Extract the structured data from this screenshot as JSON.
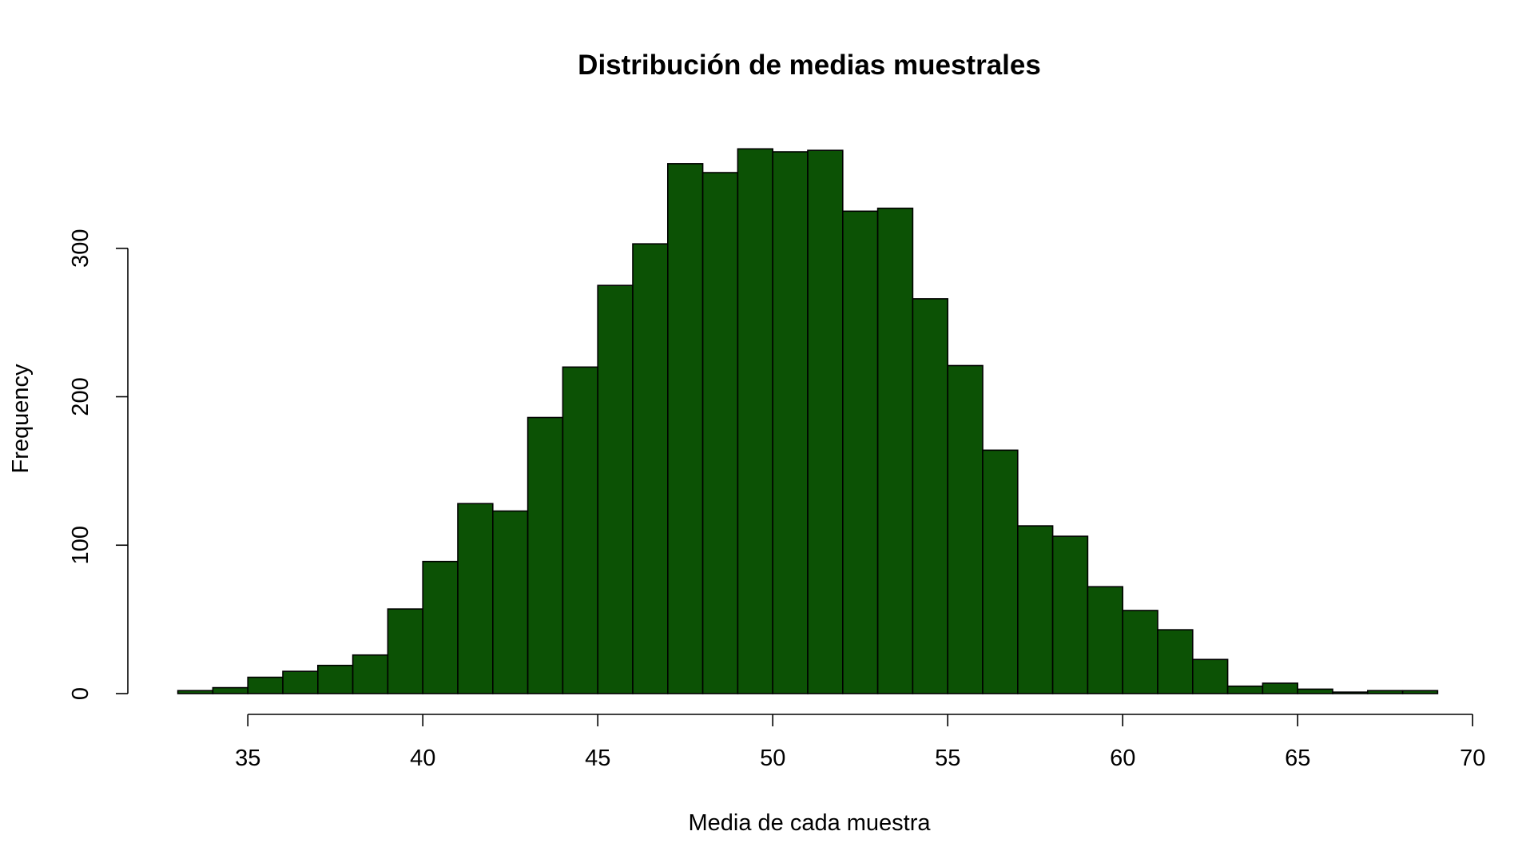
{
  "chart_data": {
    "type": "bar",
    "subtype": "histogram",
    "title": "Distribución de medias muestrales",
    "xlabel": "Media de cada muestra",
    "ylabel": "Frequency",
    "bar_color": "#0c5205",
    "border_color": "#000000",
    "xlim": [
      33,
      70
    ],
    "ylim": [
      0,
      370
    ],
    "x_ticks": [
      35,
      40,
      45,
      50,
      55,
      60,
      65,
      70
    ],
    "y_ticks": [
      0,
      100,
      200,
      300
    ],
    "grid": false,
    "legend": "none",
    "bins": [
      {
        "x0": 33,
        "x1": 34,
        "value": 2
      },
      {
        "x0": 34,
        "x1": 35,
        "value": 4
      },
      {
        "x0": 35,
        "x1": 36,
        "value": 11
      },
      {
        "x0": 36,
        "x1": 37,
        "value": 15
      },
      {
        "x0": 37,
        "x1": 38,
        "value": 19
      },
      {
        "x0": 38,
        "x1": 39,
        "value": 26
      },
      {
        "x0": 39,
        "x1": 40,
        "value": 57
      },
      {
        "x0": 40,
        "x1": 41,
        "value": 89
      },
      {
        "x0": 41,
        "x1": 42,
        "value": 128
      },
      {
        "x0": 42,
        "x1": 43,
        "value": 123
      },
      {
        "x0": 43,
        "x1": 44,
        "value": 186
      },
      {
        "x0": 44,
        "x1": 45,
        "value": 220
      },
      {
        "x0": 45,
        "x1": 46,
        "value": 275
      },
      {
        "x0": 46,
        "x1": 47,
        "value": 303
      },
      {
        "x0": 47,
        "x1": 48,
        "value": 357
      },
      {
        "x0": 48,
        "x1": 49,
        "value": 351
      },
      {
        "x0": 49,
        "x1": 50,
        "value": 367
      },
      {
        "x0": 50,
        "x1": 51,
        "value": 365
      },
      {
        "x0": 51,
        "x1": 52,
        "value": 366
      },
      {
        "x0": 52,
        "x1": 53,
        "value": 325
      },
      {
        "x0": 53,
        "x1": 54,
        "value": 327
      },
      {
        "x0": 54,
        "x1": 55,
        "value": 266
      },
      {
        "x0": 55,
        "x1": 56,
        "value": 221
      },
      {
        "x0": 56,
        "x1": 57,
        "value": 164
      },
      {
        "x0": 57,
        "x1": 58,
        "value": 113
      },
      {
        "x0": 58,
        "x1": 59,
        "value": 106
      },
      {
        "x0": 59,
        "x1": 60,
        "value": 72
      },
      {
        "x0": 60,
        "x1": 61,
        "value": 56
      },
      {
        "x0": 61,
        "x1": 62,
        "value": 43
      },
      {
        "x0": 62,
        "x1": 63,
        "value": 23
      },
      {
        "x0": 63,
        "x1": 64,
        "value": 5
      },
      {
        "x0": 64,
        "x1": 65,
        "value": 7
      },
      {
        "x0": 65,
        "x1": 66,
        "value": 3
      },
      {
        "x0": 66,
        "x1": 67,
        "value": 1
      },
      {
        "x0": 67,
        "x1": 68,
        "value": 2
      },
      {
        "x0": 68,
        "x1": 69,
        "value": 2
      }
    ]
  }
}
